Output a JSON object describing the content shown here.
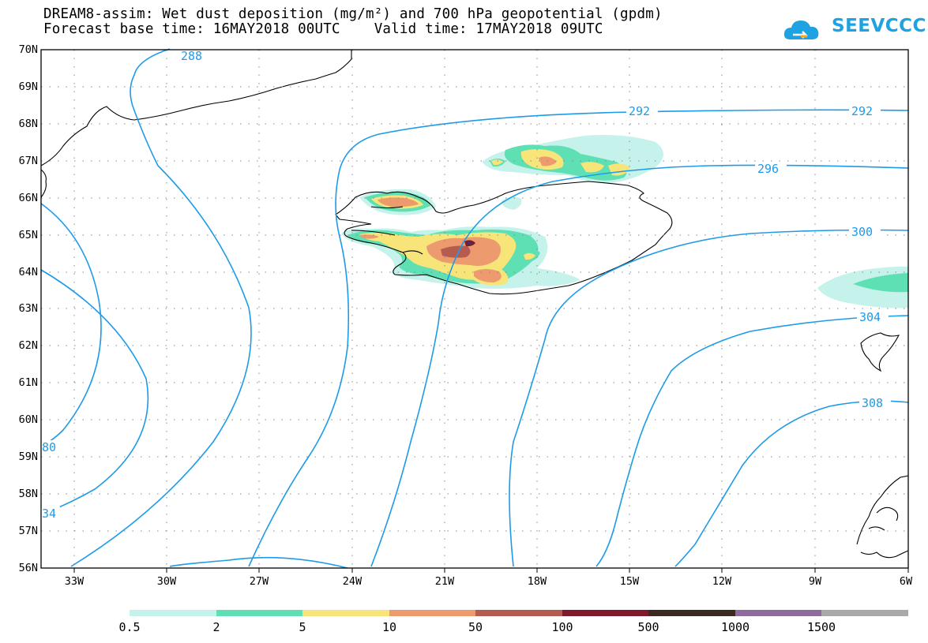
{
  "title_line1": "DREAM8-assim: Wet dust deposition (mg/m²) and 700 hPa geopotential (gpdm)",
  "title_line2": "Forecast base time: 16MAY2018 00UTC    Valid time: 17MAY2018 09UTC",
  "logo_text": "SEEVCCC",
  "lat_labels": [
    "70N",
    "69N",
    "68N",
    "67N",
    "66N",
    "65N",
    "64N",
    "63N",
    "62N",
    "61N",
    "60N",
    "59N",
    "58N",
    "57N",
    "56N"
  ],
  "lon_labels": [
    "33W",
    "30W",
    "27W",
    "24W",
    "21W",
    "18W",
    "15W",
    "12W",
    "9W",
    "6W"
  ],
  "contour_labels": [
    "288",
    "292",
    "292",
    "296",
    "300",
    "304",
    "308",
    "80",
    "34"
  ],
  "legend": {
    "labels": [
      "0.5",
      "2",
      "5",
      "10",
      "50",
      "100",
      "500",
      "1000",
      "1500"
    ],
    "colors": [
      "#c6f2ec",
      "#5fe0b4",
      "#f7e57a",
      "#ec9a6e",
      "#b65b4f",
      "#7e1a2c",
      "#3a2a22",
      "#8f6a9e",
      "#a9a9a9"
    ]
  },
  "contour_color": "#1e9be8"
}
